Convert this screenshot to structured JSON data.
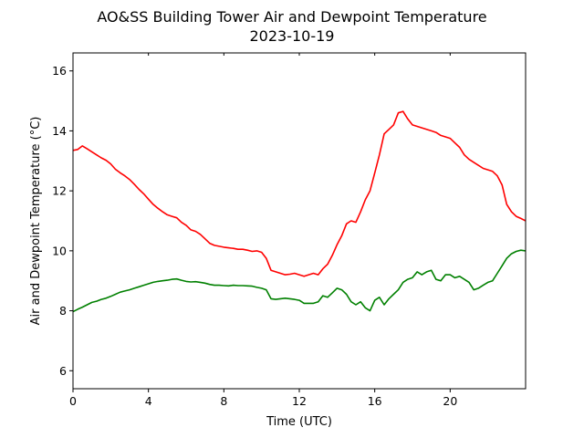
{
  "chart_data": {
    "type": "line",
    "title": "AO&SS Building Tower Air and Dewpoint Temperature",
    "subtitle": "2023-10-19",
    "xlabel": "Time (UTC)",
    "ylabel": "Air and Dewpoint Temperature (°C)",
    "xlim": [
      0,
      24
    ],
    "ylim": [
      5.4,
      16.6
    ],
    "xticks": [
      0,
      4,
      8,
      12,
      16,
      20
    ],
    "yticks": [
      6,
      8,
      10,
      12,
      14,
      16
    ],
    "grid": false,
    "series": [
      {
        "color": "#ff0000",
        "x": [
          0,
          0.25,
          0.5,
          0.75,
          1,
          1.25,
          1.5,
          1.75,
          2,
          2.25,
          2.5,
          2.75,
          3,
          3.25,
          3.5,
          3.75,
          4,
          4.25,
          4.5,
          4.75,
          5,
          5.25,
          5.5,
          5.75,
          6,
          6.25,
          6.5,
          6.75,
          7,
          7.25,
          7.5,
          7.75,
          8,
          8.25,
          8.5,
          8.75,
          9,
          9.25,
          9.5,
          9.75,
          10,
          10.25,
          10.5,
          10.75,
          11,
          11.25,
          11.5,
          11.75,
          12,
          12.25,
          12.5,
          12.75,
          13,
          13.25,
          13.5,
          13.75,
          14,
          14.25,
          14.5,
          14.75,
          15,
          15.25,
          15.5,
          15.75,
          16,
          16.25,
          16.5,
          16.75,
          17,
          17.25,
          17.5,
          17.75,
          18,
          18.25,
          18.5,
          18.75,
          19,
          19.25,
          19.5,
          19.75,
          20,
          20.25,
          20.5,
          20.75,
          21,
          21.25,
          21.5,
          21.75,
          22,
          22.25,
          22.5,
          22.75,
          23,
          23.25,
          23.5,
          23.75,
          24
        ],
        "values": [
          13.35,
          13.38,
          13.5,
          13.4,
          13.3,
          13.2,
          13.1,
          13.02,
          12.9,
          12.72,
          12.6,
          12.5,
          12.38,
          12.22,
          12.05,
          11.9,
          11.72,
          11.55,
          11.42,
          11.3,
          11.2,
          11.15,
          11.1,
          10.95,
          10.85,
          10.7,
          10.65,
          10.55,
          10.4,
          10.25,
          10.18,
          10.15,
          10.12,
          10.1,
          10.08,
          10.05,
          10.05,
          10.02,
          9.98,
          10.0,
          9.95,
          9.75,
          9.35,
          9.3,
          9.25,
          9.2,
          9.22,
          9.25,
          9.2,
          9.15,
          9.2,
          9.25,
          9.2,
          9.4,
          9.55,
          9.85,
          10.2,
          10.5,
          10.9,
          11.0,
          10.95,
          11.3,
          11.7,
          12.0,
          12.6,
          13.2,
          13.9,
          14.05,
          14.2,
          14.6,
          14.65,
          14.4,
          14.2,
          14.15,
          14.1,
          14.05,
          14.0,
          13.95,
          13.85,
          13.8,
          13.75,
          13.6,
          13.45,
          13.2,
          13.05,
          12.95,
          12.85,
          12.75,
          12.7,
          12.65,
          12.5,
          12.2,
          11.55,
          11.3,
          11.15,
          11.08,
          11.0
        ]
      },
      {
        "color": "#008000",
        "x": [
          0,
          0.25,
          0.5,
          0.75,
          1,
          1.25,
          1.5,
          1.75,
          2,
          2.25,
          2.5,
          2.75,
          3,
          3.25,
          3.5,
          3.75,
          4,
          4.25,
          4.5,
          4.75,
          5,
          5.25,
          5.5,
          5.75,
          6,
          6.25,
          6.5,
          6.75,
          7,
          7.25,
          7.5,
          7.75,
          8,
          8.25,
          8.5,
          8.75,
          9,
          9.25,
          9.5,
          9.75,
          10,
          10.25,
          10.5,
          10.75,
          11,
          11.25,
          11.5,
          11.75,
          12,
          12.25,
          12.5,
          12.75,
          13,
          13.25,
          13.5,
          13.75,
          14,
          14.25,
          14.5,
          14.75,
          15,
          15.25,
          15.5,
          15.75,
          16,
          16.25,
          16.5,
          16.75,
          17,
          17.25,
          17.5,
          17.75,
          18,
          18.25,
          18.5,
          18.75,
          19,
          19.25,
          19.5,
          19.75,
          20,
          20.25,
          20.5,
          20.75,
          21,
          21.25,
          21.5,
          21.75,
          22,
          22.25,
          22.5,
          22.75,
          23,
          23.25,
          23.5,
          23.75,
          24
        ],
        "values": [
          7.97,
          8.05,
          8.12,
          8.2,
          8.28,
          8.32,
          8.38,
          8.42,
          8.48,
          8.55,
          8.62,
          8.66,
          8.7,
          8.75,
          8.8,
          8.85,
          8.9,
          8.95,
          8.98,
          9.0,
          9.02,
          9.05,
          9.06,
          9.02,
          8.98,
          8.96,
          8.97,
          8.95,
          8.92,
          8.88,
          8.85,
          8.85,
          8.84,
          8.83,
          8.85,
          8.84,
          8.84,
          8.83,
          8.82,
          8.78,
          8.75,
          8.7,
          8.4,
          8.38,
          8.4,
          8.42,
          8.4,
          8.38,
          8.35,
          8.25,
          8.25,
          8.25,
          8.3,
          8.5,
          8.45,
          8.6,
          8.75,
          8.7,
          8.55,
          8.3,
          8.2,
          8.3,
          8.1,
          8.0,
          8.35,
          8.45,
          8.2,
          8.4,
          8.55,
          8.7,
          8.95,
          9.05,
          9.1,
          9.3,
          9.2,
          9.3,
          9.35,
          9.05,
          9.0,
          9.2,
          9.2,
          9.1,
          9.15,
          9.05,
          8.95,
          8.7,
          8.75,
          8.85,
          8.95,
          9.0,
          9.25,
          9.5,
          9.75,
          9.9,
          9.98,
          10.02,
          10.0
        ]
      }
    ]
  }
}
